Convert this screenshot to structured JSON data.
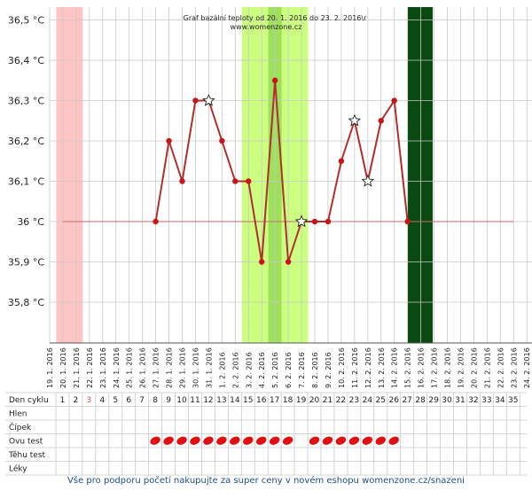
{
  "chart_data": {
    "type": "line",
    "title": "Graf bazální teploty od 20. 1. 2016 do 23. 2. 2016\\r",
    "subtitle": "www.womenzone.cz",
    "ylim": [
      35.7,
      36.53
    ],
    "y_ticks": [
      "35,8 °C",
      "35,9 °C",
      "36 °C",
      "36,1 °C",
      "36,2 °C",
      "36,3 °C",
      "36,4 °C",
      "36,5 °C"
    ],
    "y_tick_values": [
      35.8,
      35.9,
      36.0,
      36.1,
      36.2,
      36.3,
      36.4,
      36.5
    ],
    "x_dates": [
      "19. 1. 2016",
      "20. 1. 2016",
      "21. 1. 2016",
      "22. 1. 2016",
      "23. 1. 2016",
      "24. 1. 2016",
      "25. 1. 2016",
      "26. 1. 2016",
      "27. 1. 2016",
      "28. 1. 2016",
      "29. 1. 2016",
      "30. 1. 2016",
      "31. 1. 2016",
      "1. 2. 2016",
      "2. 2. 2016",
      "3. 2. 2016",
      "4. 2. 2016",
      "5. 2. 2016",
      "6. 2. 2016",
      "7. 2. 2016",
      "8. 2. 2016",
      "9. 2. 2016",
      "10. 2. 2016",
      "11. 2. 2016",
      "12. 2. 2016",
      "13. 2. 2016",
      "14. 2. 2016",
      "15. 2. 2016",
      "16. 2. 2016",
      "17. 2. 2016",
      "18. 2. 2016",
      "19. 2. 2016",
      "20. 2. 2016",
      "21. 2. 2016",
      "22. 2. 2016",
      "23. 2. 2016",
      "24. 2. 2016"
    ],
    "cover_line": 36.0,
    "cover_line_range": [
      1,
      35
    ],
    "series": [
      {
        "values": [
          {
            "day": 8,
            "t": 36.0,
            "star": false
          },
          {
            "day": 9,
            "t": 36.2,
            "star": false
          },
          {
            "day": 10,
            "t": 36.1,
            "star": false
          },
          {
            "day": 11,
            "t": 36.3,
            "star": false
          },
          {
            "day": 12,
            "t": 36.3,
            "star": true
          },
          {
            "day": 13,
            "t": 36.2,
            "star": false
          },
          {
            "day": 14,
            "t": 36.1,
            "star": false
          },
          {
            "day": 15,
            "t": 36.1,
            "star": false
          },
          {
            "day": 16,
            "t": 35.9,
            "star": false
          },
          {
            "day": 17,
            "t": 36.35,
            "star": false
          },
          {
            "day": 18,
            "t": 35.9,
            "star": false
          },
          {
            "day": 19,
            "t": 36.0,
            "star": true
          },
          {
            "day": 20,
            "t": 36.0,
            "star": false
          },
          {
            "day": 21,
            "t": 36.0,
            "star": false
          },
          {
            "day": 22,
            "t": 36.15,
            "star": false
          },
          {
            "day": 23,
            "t": 36.25,
            "star": true
          },
          {
            "day": 24,
            "t": 36.1,
            "star": true
          },
          {
            "day": 25,
            "t": 36.25,
            "star": false
          },
          {
            "day": 26,
            "t": 36.3,
            "star": false
          },
          {
            "day": 27,
            "t": 36.0,
            "star": false
          }
        ]
      }
    ],
    "bands": [
      {
        "from_day": 1,
        "to_day": 2,
        "color": "#ffc4c4"
      },
      {
        "from_day": 15,
        "to_day": 19,
        "color": "#ccff80"
      },
      {
        "from_day": 17,
        "to_day": 17,
        "color": "#9ee05a"
      },
      {
        "from_day": 27.5,
        "to_day": 28.4,
        "color": "#0a4a12"
      }
    ],
    "colors": {
      "line": "#b02e2e",
      "point": "#c81414",
      "grid": "#c8c8c8",
      "cover": "#c86a6a"
    }
  },
  "table": {
    "rows": [
      "Den cyklu",
      "Hlen",
      "Čípek",
      "Ovu test",
      "Těhu test",
      "Léky"
    ],
    "cycle_days": [
      "1",
      "2",
      "3",
      "4",
      "5",
      "6",
      "7",
      "8",
      "9",
      "10",
      "11",
      "12",
      "13",
      "14",
      "15",
      "16",
      "17",
      "18",
      "19",
      "20",
      "21",
      "22",
      "23",
      "24",
      "25",
      "26",
      "27",
      "28",
      "29",
      "30",
      "31",
      "32",
      "33",
      "34",
      "35"
    ],
    "highlight_day": "3",
    "ovu_test_days": [
      8,
      9,
      10,
      11,
      12,
      13,
      14,
      15,
      16,
      17,
      18,
      20,
      21,
      22,
      23,
      24,
      25,
      26
    ]
  },
  "footer": "Vše pro podporu početí nakupujte za super ceny v novém eshopu womenzone.cz/snazeni"
}
